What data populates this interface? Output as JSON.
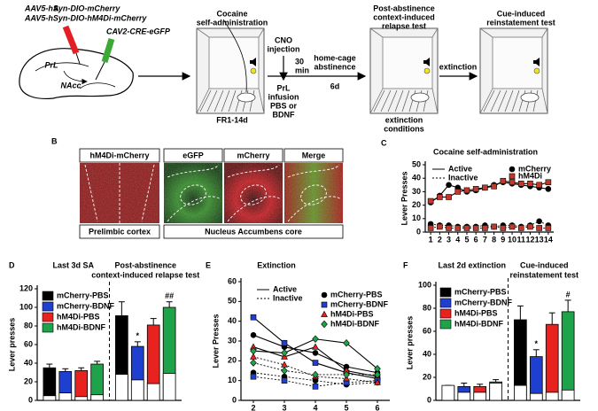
{
  "panel_a": {
    "label": "A",
    "vector_1": "AAV5-hSyn-DIO-mCherry",
    "vector_2": "AAV5-hSyn-DIO-hM4Di-mCherry",
    "vector_3": "CAV2-CRE-eGFP",
    "region_1": "PrL",
    "region_2": "NAcc",
    "sa_title": [
      "Cocaine",
      "self-administration"
    ],
    "sa_schedule": "FR1-14d",
    "cno": [
      "CNO",
      "injection"
    ],
    "delay": [
      "30",
      "min"
    ],
    "infusion": [
      "PrL",
      "infusion",
      "PBS or",
      "BDNF"
    ],
    "abstinence": [
      "home-cage",
      "abstinence"
    ],
    "abstinence_duration": "6d",
    "relapse_title": [
      "Post-abstinence",
      "context-induced",
      "relapse test"
    ],
    "relapse_conditions": [
      "extinction",
      "conditions"
    ],
    "extinction": "extinction",
    "reinstatement_title": [
      "Cue-induced",
      "reinstatement test"
    ]
  },
  "panel_b": {
    "label": "B",
    "headers": [
      "hM4Di-mCherry",
      "eGFP",
      "mCherry",
      "Merge"
    ],
    "regions": [
      "Prelimbic cortex",
      "Nucleus Accumbens core"
    ]
  },
  "chart_data": [
    {
      "type": "line",
      "panel": "C",
      "title": "Cocaine self-administration",
      "y_label": "Lever Presses",
      "x": [
        1,
        2,
        3,
        4,
        5,
        6,
        7,
        8,
        9,
        10,
        11,
        12,
        13,
        14
      ],
      "xlim": [
        0.4,
        14.6
      ],
      "xticks": [
        1,
        2,
        3,
        4,
        5,
        6,
        7,
        8,
        9,
        10,
        11,
        12,
        13,
        14
      ],
      "ylim": [
        0,
        50
      ],
      "yticks": [
        0,
        10,
        20,
        30,
        40,
        50
      ],
      "line_styles": [
        "Active",
        "Inactive"
      ],
      "series": [
        {
          "name": "mCherry",
          "color": "#000000",
          "marker": "circle",
          "active": [
            22,
            27,
            35,
            33,
            30,
            31,
            33,
            35,
            37,
            36,
            35,
            34,
            33,
            32
          ],
          "inactive": [
            6,
            5,
            5,
            4,
            4,
            4,
            5,
            4,
            5,
            5,
            4,
            5,
            8,
            5
          ]
        },
        {
          "name": "hM4Di",
          "color": "#c0392b",
          "marker": "square",
          "active": [
            23,
            26,
            26,
            30,
            31,
            32,
            33,
            34,
            38,
            37,
            36,
            36,
            35,
            37
          ],
          "inactive": [
            3,
            4,
            3,
            3,
            3,
            3,
            3,
            4,
            3,
            4,
            3,
            4,
            3,
            3
          ]
        }
      ]
    },
    {
      "type": "bar",
      "panel": "D",
      "y_label": "Lever presses",
      "groups": [
        [
          "Last 3d SA"
        ],
        [
          "Post-abstinence",
          "context-induced relapse test"
        ]
      ],
      "ylim": [
        0,
        120
      ],
      "yticks": [
        0,
        20,
        40,
        60,
        80,
        100,
        120
      ],
      "series": [
        {
          "name": "mCherry-PBS",
          "color": "#000000",
          "active": [
            35,
            91
          ],
          "active_error": [
            4,
            15
          ],
          "inactive": [
            5,
            28
          ]
        },
        {
          "name": "mCherry-BDNF",
          "color": "#1f3fd1",
          "active": [
            31,
            58
          ],
          "active_error": [
            3,
            5
          ],
          "inactive": [
            8,
            22
          ],
          "annotations": [
            null,
            "*"
          ]
        },
        {
          "name": "hM4Di-PBS",
          "color": "#e8231f",
          "active": [
            32,
            81
          ],
          "active_error": [
            3,
            7
          ],
          "inactive": [
            4,
            18
          ]
        },
        {
          "name": "hM4Di-BDNF",
          "color": "#1fa34a",
          "active": [
            39,
            100
          ],
          "active_error": [
            3,
            6
          ],
          "inactive": [
            6,
            29
          ],
          "annotations": [
            null,
            "##"
          ]
        }
      ]
    },
    {
      "type": "line",
      "panel": "E",
      "title": "Extinction",
      "y_label": "Lever Presses",
      "x": [
        2,
        3,
        4,
        5,
        6
      ],
      "xlim": [
        1.6,
        6.4
      ],
      "xticks": [
        2,
        3,
        4,
        5,
        6
      ],
      "ylim": [
        0,
        60
      ],
      "yticks": [
        0,
        10,
        20,
        30,
        40,
        50,
        60
      ],
      "line_styles": [
        "Active",
        "Inactive"
      ],
      "series": [
        {
          "name": "mCherry-PBS",
          "color": "#000000",
          "marker": "circle",
          "active": [
            33,
            27,
            24,
            17,
            14
          ],
          "inactive": [
            14,
            12,
            10,
            8,
            9
          ]
        },
        {
          "name": "mCherry-BDNF",
          "color": "#1f3fd1",
          "marker": "square",
          "active": [
            42,
            29,
            19,
            14,
            11
          ],
          "inactive": [
            12,
            10,
            7,
            9,
            10
          ]
        },
        {
          "name": "hM4Di-PBS",
          "color": "#e8231f",
          "marker": "triangle",
          "active": [
            27,
            22,
            27,
            15,
            12
          ],
          "inactive": [
            22,
            18,
            12,
            11,
            9
          ]
        },
        {
          "name": "hM4Di-BDNF",
          "color": "#1fa34a",
          "marker": "diamond",
          "active": [
            25,
            24,
            31,
            29,
            16
          ],
          "inactive": [
            19,
            15,
            13,
            13,
            13
          ]
        }
      ]
    },
    {
      "type": "bar",
      "panel": "F",
      "y_label": "Lever presses",
      "groups": [
        [
          "Last 2d extinction"
        ],
        [
          "Cue-induced",
          "reinstatement test"
        ]
      ],
      "ylim": [
        0,
        100
      ],
      "yticks": [
        0,
        20,
        40,
        60,
        80,
        100
      ],
      "series": [
        {
          "name": "mCherry-PBS",
          "color": "#000000",
          "active": [
            12,
            70
          ],
          "active_error": [
            1,
            12
          ],
          "inactive": [
            13,
            13
          ]
        },
        {
          "name": "mCherry-BDNF",
          "color": "#1f3fd1",
          "active": [
            12,
            38
          ],
          "active_error": [
            3,
            6
          ],
          "inactive": [
            7,
            6
          ],
          "annotations": [
            null,
            "*"
          ]
        },
        {
          "name": "hM4Di-PBS",
          "color": "#e8231f",
          "active": [
            12,
            66
          ],
          "active_error": [
            2,
            10
          ],
          "inactive": [
            7,
            7
          ]
        },
        {
          "name": "hM4Di-BDNF",
          "color": "#1fa34a",
          "active": [
            16,
            77
          ],
          "active_error": [
            2,
            10
          ],
          "inactive": [
            15,
            9
          ],
          "annotations": [
            null,
            "#"
          ]
        }
      ]
    }
  ]
}
